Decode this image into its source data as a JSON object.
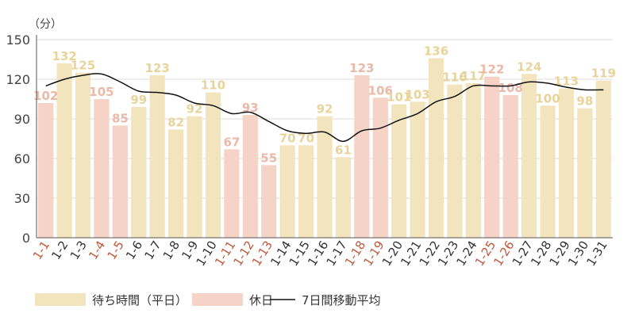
{
  "chart_data": {
    "type": "bar",
    "unit_label": "（分）",
    "categories": [
      "1-1",
      "1-2",
      "1-3",
      "1-4",
      "1-5",
      "1-6",
      "1-7",
      "1-8",
      "1-9",
      "1-10",
      "1-11",
      "1-12",
      "1-13",
      "1-14",
      "1-15",
      "1-16",
      "1-17",
      "1-18",
      "1-19",
      "1-20",
      "1-21",
      "1-22",
      "1-23",
      "1-24",
      "1-25",
      "1-26",
      "1-27",
      "1-28",
      "1-29",
      "1-30",
      "1-31"
    ],
    "values": [
      102,
      132,
      125,
      105,
      85,
      99,
      123,
      82,
      92,
      110,
      67,
      93,
      55,
      70,
      70,
      92,
      61,
      123,
      106,
      101,
      103,
      136,
      116,
      117,
      122,
      108,
      124,
      100,
      113,
      98,
      119
    ],
    "holiday": [
      true,
      false,
      false,
      true,
      true,
      false,
      false,
      false,
      false,
      false,
      true,
      true,
      true,
      false,
      false,
      false,
      false,
      true,
      true,
      false,
      false,
      false,
      false,
      false,
      true,
      true,
      false,
      false,
      false,
      false,
      false
    ],
    "moving_average": [
      115,
      120,
      123,
      124,
      118,
      111,
      110,
      108,
      102,
      100,
      94,
      95,
      88,
      81,
      79,
      80,
      73,
      81,
      83,
      89,
      94,
      103,
      107,
      115,
      115,
      115,
      118,
      117,
      114,
      112,
      112
    ],
    "yticks": [
      0,
      30,
      60,
      90,
      120,
      150
    ],
    "ylim": [
      0,
      150
    ],
    "colors": {
      "weekday": "#f2e4bc",
      "holiday": "#f5d3c6",
      "weekday_label": "#e8d49a",
      "holiday_label": "#eab9a8",
      "holiday_tick": "#c0583a",
      "line": "#111111",
      "axis": "#555555",
      "grid": "#dddddd"
    },
    "legend": {
      "weekday": "待ち時間（平日）",
      "holiday": "休日",
      "line": "7日間移動平均"
    },
    "legend_position": "bottom"
  }
}
